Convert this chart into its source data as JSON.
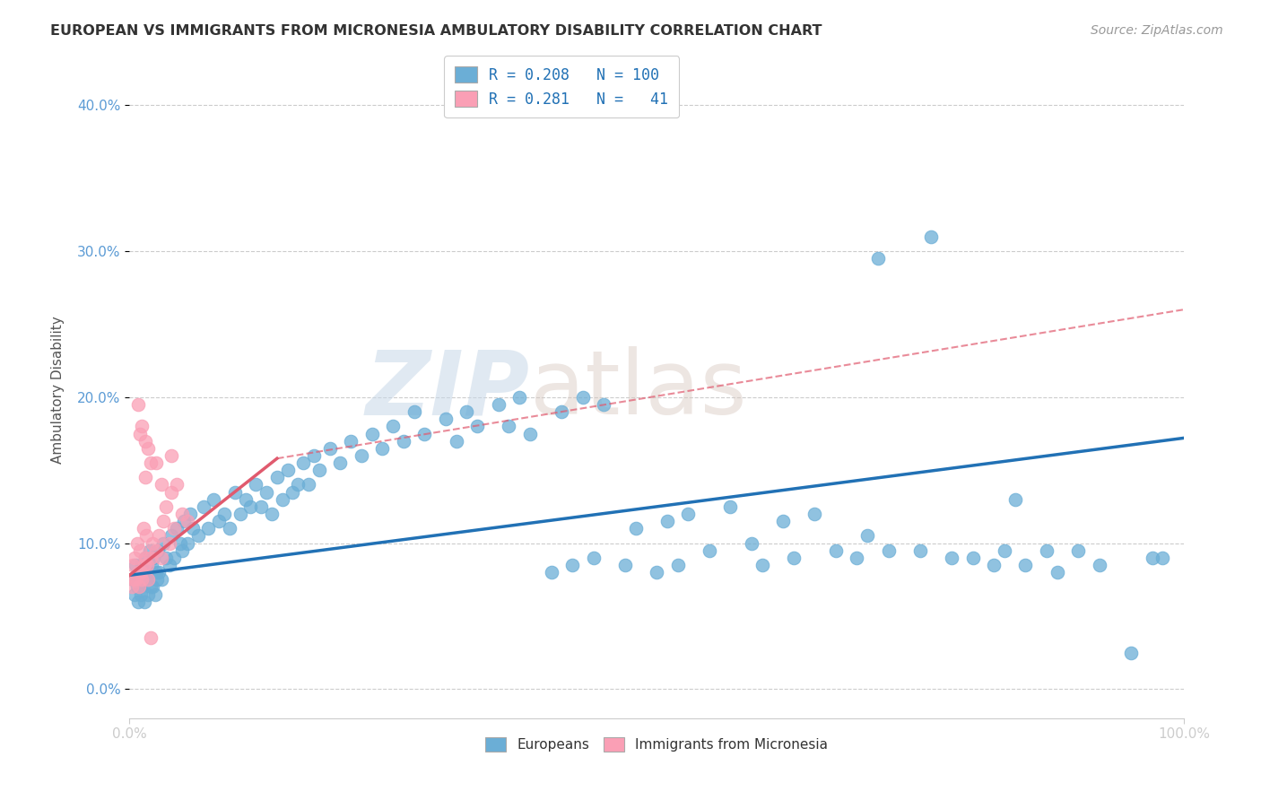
{
  "title": "EUROPEAN VS IMMIGRANTS FROM MICRONESIA AMBULATORY DISABILITY CORRELATION CHART",
  "source": "Source: ZipAtlas.com",
  "ylabel": "Ambulatory Disability",
  "ytick_vals": [
    0.0,
    10.0,
    20.0,
    30.0,
    40.0
  ],
  "xlim": [
    0,
    100
  ],
  "ylim": [
    -2,
    43
  ],
  "blue_color": "#6baed6",
  "pink_color": "#fa9fb5",
  "blue_line_color": "#2171b5",
  "pink_line_color": "#e05a6e",
  "watermark_zip": "ZIP",
  "watermark_atlas": "atlas",
  "blue_scatter": [
    [
      0.3,
      7.5
    ],
    [
      0.5,
      6.5
    ],
    [
      0.6,
      8.5
    ],
    [
      0.7,
      7.0
    ],
    [
      0.8,
      6.0
    ],
    [
      0.9,
      8.0
    ],
    [
      1.0,
      7.0
    ],
    [
      1.1,
      6.5
    ],
    [
      1.2,
      8.5
    ],
    [
      1.3,
      7.5
    ],
    [
      1.4,
      6.0
    ],
    [
      1.5,
      9.0
    ],
    [
      1.6,
      7.5
    ],
    [
      1.7,
      8.0
    ],
    [
      1.8,
      6.5
    ],
    [
      1.9,
      9.5
    ],
    [
      2.0,
      7.0
    ],
    [
      2.1,
      8.5
    ],
    [
      2.2,
      7.0
    ],
    [
      2.3,
      9.0
    ],
    [
      2.4,
      6.5
    ],
    [
      2.5,
      8.0
    ],
    [
      2.6,
      7.5
    ],
    [
      2.7,
      9.5
    ],
    [
      2.8,
      8.0
    ],
    [
      3.0,
      7.5
    ],
    [
      3.2,
      10.0
    ],
    [
      3.5,
      9.0
    ],
    [
      3.8,
      8.5
    ],
    [
      4.0,
      10.5
    ],
    [
      4.2,
      9.0
    ],
    [
      4.5,
      11.0
    ],
    [
      4.8,
      10.0
    ],
    [
      5.0,
      9.5
    ],
    [
      5.2,
      11.5
    ],
    [
      5.5,
      10.0
    ],
    [
      5.8,
      12.0
    ],
    [
      6.0,
      11.0
    ],
    [
      6.5,
      10.5
    ],
    [
      7.0,
      12.5
    ],
    [
      7.5,
      11.0
    ],
    [
      8.0,
      13.0
    ],
    [
      8.5,
      11.5
    ],
    [
      9.0,
      12.0
    ],
    [
      9.5,
      11.0
    ],
    [
      10.0,
      13.5
    ],
    [
      10.5,
      12.0
    ],
    [
      11.0,
      13.0
    ],
    [
      11.5,
      12.5
    ],
    [
      12.0,
      14.0
    ],
    [
      12.5,
      12.5
    ],
    [
      13.0,
      13.5
    ],
    [
      13.5,
      12.0
    ],
    [
      14.0,
      14.5
    ],
    [
      14.5,
      13.0
    ],
    [
      15.0,
      15.0
    ],
    [
      15.5,
      13.5
    ],
    [
      16.0,
      14.0
    ],
    [
      16.5,
      15.5
    ],
    [
      17.0,
      14.0
    ],
    [
      17.5,
      16.0
    ],
    [
      18.0,
      15.0
    ],
    [
      19.0,
      16.5
    ],
    [
      20.0,
      15.5
    ],
    [
      21.0,
      17.0
    ],
    [
      22.0,
      16.0
    ],
    [
      23.0,
      17.5
    ],
    [
      24.0,
      16.5
    ],
    [
      25.0,
      18.0
    ],
    [
      26.0,
      17.0
    ],
    [
      27.0,
      19.0
    ],
    [
      28.0,
      17.5
    ],
    [
      30.0,
      18.5
    ],
    [
      31.0,
      17.0
    ],
    [
      32.0,
      19.0
    ],
    [
      33.0,
      18.0
    ],
    [
      35.0,
      19.5
    ],
    [
      36.0,
      18.0
    ],
    [
      37.0,
      20.0
    ],
    [
      38.0,
      17.5
    ],
    [
      40.0,
      8.0
    ],
    [
      41.0,
      19.0
    ],
    [
      42.0,
      8.5
    ],
    [
      43.0,
      20.0
    ],
    [
      44.0,
      9.0
    ],
    [
      45.0,
      19.5
    ],
    [
      47.0,
      8.5
    ],
    [
      48.0,
      11.0
    ],
    [
      50.0,
      8.0
    ],
    [
      51.0,
      11.5
    ],
    [
      52.0,
      8.5
    ],
    [
      53.0,
      12.0
    ],
    [
      55.0,
      9.5
    ],
    [
      57.0,
      12.5
    ],
    [
      59.0,
      10.0
    ],
    [
      60.0,
      8.5
    ],
    [
      62.0,
      11.5
    ],
    [
      63.0,
      9.0
    ],
    [
      65.0,
      12.0
    ],
    [
      67.0,
      9.5
    ],
    [
      69.0,
      9.0
    ],
    [
      70.0,
      10.5
    ],
    [
      71.0,
      29.5
    ],
    [
      72.0,
      9.5
    ],
    [
      75.0,
      9.5
    ],
    [
      76.0,
      31.0
    ],
    [
      78.0,
      9.0
    ],
    [
      80.0,
      9.0
    ],
    [
      82.0,
      8.5
    ],
    [
      83.0,
      9.5
    ],
    [
      84.0,
      13.0
    ],
    [
      85.0,
      8.5
    ],
    [
      87.0,
      9.5
    ],
    [
      88.0,
      8.0
    ],
    [
      90.0,
      9.5
    ],
    [
      92.0,
      8.5
    ],
    [
      95.0,
      2.5
    ],
    [
      97.0,
      9.0
    ],
    [
      98.0,
      9.0
    ]
  ],
  "pink_scatter": [
    [
      0.2,
      7.0
    ],
    [
      0.3,
      8.5
    ],
    [
      0.4,
      7.5
    ],
    [
      0.5,
      9.0
    ],
    [
      0.6,
      7.5
    ],
    [
      0.7,
      10.0
    ],
    [
      0.8,
      8.0
    ],
    [
      0.9,
      7.0
    ],
    [
      1.0,
      9.5
    ],
    [
      1.1,
      8.0
    ],
    [
      1.2,
      7.5
    ],
    [
      1.3,
      11.0
    ],
    [
      1.4,
      8.5
    ],
    [
      1.5,
      9.0
    ],
    [
      1.6,
      10.5
    ],
    [
      1.7,
      8.5
    ],
    [
      1.8,
      7.5
    ],
    [
      2.0,
      9.0
    ],
    [
      2.2,
      10.0
    ],
    [
      2.5,
      9.5
    ],
    [
      2.8,
      10.5
    ],
    [
      3.0,
      9.0
    ],
    [
      3.2,
      11.5
    ],
    [
      3.5,
      12.5
    ],
    [
      3.8,
      10.0
    ],
    [
      4.0,
      13.5
    ],
    [
      4.2,
      11.0
    ],
    [
      4.5,
      14.0
    ],
    [
      5.0,
      12.0
    ],
    [
      5.5,
      11.5
    ],
    [
      0.8,
      19.5
    ],
    [
      1.0,
      17.5
    ],
    [
      1.2,
      18.0
    ],
    [
      1.5,
      17.0
    ],
    [
      1.8,
      16.5
    ],
    [
      2.0,
      15.5
    ],
    [
      1.5,
      14.5
    ],
    [
      2.5,
      15.5
    ],
    [
      3.0,
      14.0
    ],
    [
      4.0,
      16.0
    ],
    [
      2.0,
      3.5
    ]
  ],
  "blue_trendline": [
    [
      0,
      7.8
    ],
    [
      100,
      17.2
    ]
  ],
  "pink_trendline_solid": [
    [
      0,
      7.8
    ],
    [
      14,
      15.8
    ]
  ],
  "pink_trendline_dashed": [
    [
      14,
      15.8
    ],
    [
      100,
      26.0
    ]
  ],
  "background_color": "#ffffff",
  "grid_color": "#cccccc"
}
